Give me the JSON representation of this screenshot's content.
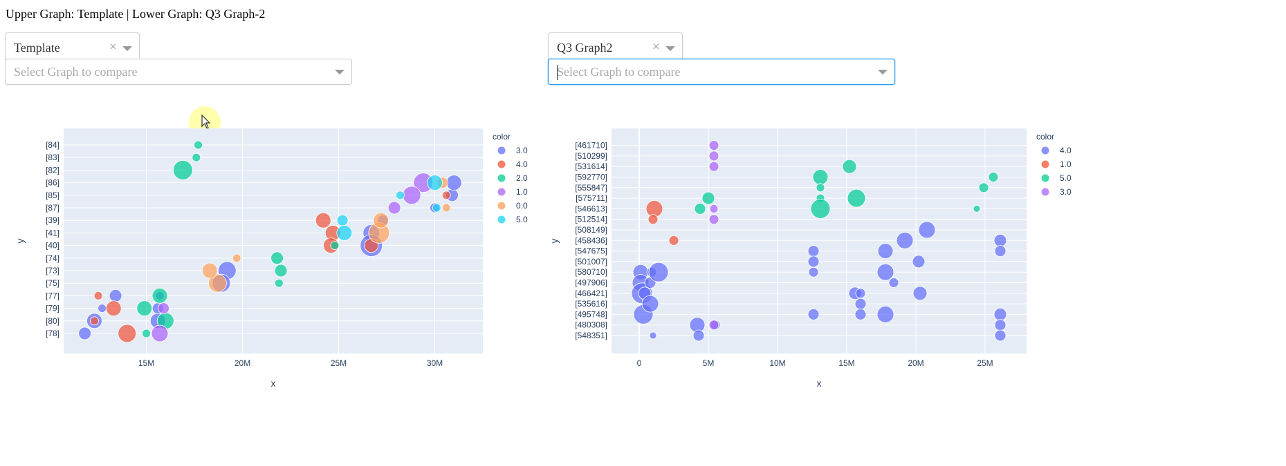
{
  "header": {
    "title": "Upper Graph: Template | Lower Graph: Q3 Graph-2"
  },
  "left": {
    "graph_select": {
      "value": "Template",
      "clear": "×"
    },
    "compare_select": {
      "placeholder": "Select Graph to compare"
    }
  },
  "right": {
    "graph_select": {
      "value": "Q3 Graph2",
      "clear": "×"
    },
    "compare_select": {
      "placeholder": "Select Graph to compare"
    }
  },
  "colors": {
    "plot_bg": "#e5ecf6",
    "palette": [
      "#636efa",
      "#ef553b",
      "#00cc96",
      "#ab63fa",
      "#ffa15a",
      "#19d3f3"
    ]
  },
  "chart_data": [
    {
      "type": "scatter",
      "xlabel": "x",
      "ylabel": "y",
      "legend_title": "color",
      "legend_position": "right",
      "grid": true,
      "xlim": [
        10700000,
        32500000
      ],
      "xticks": [
        {
          "value": 15000000,
          "label": "15M"
        },
        {
          "value": 20000000,
          "label": "20M"
        },
        {
          "value": 25000000,
          "label": "25M"
        },
        {
          "value": 30000000,
          "label": "30M"
        }
      ],
      "categories": [
        "[84]",
        "[83]",
        "[82]",
        "[86]",
        "[85]",
        "[87]",
        "[39]",
        "[41]",
        "[40]",
        "[74]",
        "[73]",
        "[75]",
        "[77]",
        "[79]",
        "[80]",
        "[78]"
      ],
      "series": [
        {
          "name": "3.0",
          "color": "#636efa",
          "points": [
            [
              11800000,
              "[78]",
              9
            ],
            [
              12300000,
              "[80]",
              11
            ],
            [
              12700000,
              "[79]",
              6
            ],
            [
              13400000,
              "[77]",
              9
            ],
            [
              15600000,
              "[80]",
              11
            ],
            [
              15600000,
              "[79]",
              8
            ],
            [
              15700000,
              "[77]",
              6
            ],
            [
              19200000,
              "[73]",
              13
            ],
            [
              18900000,
              "[75]",
              13
            ],
            [
              26700000,
              "[41]",
              12
            ],
            [
              26700000,
              "[40]",
              16
            ],
            [
              27300000,
              "[39]",
              8
            ],
            [
              30900000,
              "[85]",
              9
            ],
            [
              31000000,
              "[86]",
              11
            ],
            [
              30000000,
              "[87]",
              7
            ]
          ]
        },
        {
          "name": "4.0",
          "color": "#ef553b",
          "points": [
            [
              12300000,
              "[80]",
              6
            ],
            [
              12500000,
              "[77]",
              6
            ],
            [
              13300000,
              "[79]",
              11
            ],
            [
              14000000,
              "[78]",
              13
            ],
            [
              24200000,
              "[39]",
              11
            ],
            [
              24700000,
              "[41]",
              11
            ],
            [
              24600000,
              "[40]",
              11
            ],
            [
              26700000,
              "[40]",
              10
            ],
            [
              30600000,
              "[85]",
              6
            ]
          ]
        },
        {
          "name": "2.0",
          "color": "#00cc96",
          "points": [
            [
              17700000,
              "[84]",
              6
            ],
            [
              17600000,
              "[83]",
              6
            ],
            [
              16900000,
              "[82]",
              14
            ],
            [
              14900000,
              "[79]",
              11
            ],
            [
              15000000,
              "[78]",
              6
            ],
            [
              15700000,
              "[77]",
              11
            ],
            [
              16000000,
              "[80]",
              12
            ],
            [
              21800000,
              "[74]",
              9
            ],
            [
              22000000,
              "[73]",
              9
            ],
            [
              21900000,
              "[75]",
              6
            ],
            [
              24800000,
              "[40]",
              6
            ]
          ]
        },
        {
          "name": "1.0",
          "color": "#ab63fa",
          "points": [
            [
              15700000,
              "[78]",
              12
            ],
            [
              15900000,
              "[79]",
              8
            ],
            [
              29400000,
              "[86]",
              14
            ],
            [
              28800000,
              "[85]",
              13
            ],
            [
              27900000,
              "[87]",
              9
            ]
          ]
        },
        {
          "name": "0.0",
          "color": "#ffa15a",
          "points": [
            [
              19700000,
              "[74]",
              6
            ],
            [
              18700000,
              "[75]",
              13
            ],
            [
              18300000,
              "[73]",
              11
            ],
            [
              27100000,
              "[41]",
              15
            ],
            [
              27200000,
              "[39]",
              11
            ],
            [
              30600000,
              "[87]",
              6
            ],
            [
              30400000,
              "[86]",
              8
            ]
          ]
        },
        {
          "name": "5.0",
          "color": "#19d3f3",
          "points": [
            [
              25200000,
              "[39]",
              8
            ],
            [
              25300000,
              "[41]",
              11
            ],
            [
              28200000,
              "[85]",
              6
            ],
            [
              30000000,
              "[86]",
              11
            ],
            [
              30100000,
              "[87]",
              6
            ]
          ]
        }
      ]
    },
    {
      "type": "scatter",
      "xlabel": "x",
      "ylabel": "y",
      "legend_title": "color",
      "legend_position": "right",
      "grid": true,
      "xlim": [
        -2000000,
        28000000
      ],
      "xticks": [
        {
          "value": 0,
          "label": "0"
        },
        {
          "value": 5000000,
          "label": "5M"
        },
        {
          "value": 10000000,
          "label": "10M"
        },
        {
          "value": 15000000,
          "label": "15M"
        },
        {
          "value": 20000000,
          "label": "20M"
        },
        {
          "value": 25000000,
          "label": "25M"
        }
      ],
      "categories": [
        "[461710]",
        "[510299]",
        "[531614]",
        "[592770]",
        "[555847]",
        "[575711]",
        "[546613]",
        "[512514]",
        "[508149]",
        "[458436]",
        "[547675]",
        "[501007]",
        "[580710]",
        "[497906]",
        "[466421]",
        "[535616]",
        "[495748]",
        "[480308]",
        "[548351]"
      ],
      "series": [
        {
          "name": "4.0",
          "color": "#636efa",
          "points": [
            [
              100000,
              "[580710]",
              11
            ],
            [
              100000,
              "[497906]",
              12
            ],
            [
              200000,
              "[466421]",
              15
            ],
            [
              300000,
              "[495748]",
              14
            ],
            [
              400000,
              "[466421]",
              9
            ],
            [
              900000,
              "[580710]",
              7
            ],
            [
              800000,
              "[497906]",
              8
            ],
            [
              1400000,
              "[580710]",
              14
            ],
            [
              800000,
              "[535616]",
              12
            ],
            [
              1000000,
              "[548351]",
              5
            ],
            [
              4200000,
              "[480308]",
              11
            ],
            [
              4300000,
              "[548351]",
              8
            ],
            [
              5500000,
              "[480308]",
              7
            ],
            [
              12600000,
              "[547675]",
              8
            ],
            [
              12600000,
              "[501007]",
              8
            ],
            [
              12600000,
              "[580710]",
              7
            ],
            [
              12600000,
              "[495748]",
              8
            ],
            [
              15600000,
              "[466421]",
              9
            ],
            [
              16000000,
              "[535616]",
              8
            ],
            [
              16000000,
              "[466421]",
              7
            ],
            [
              16000000,
              "[495748]",
              8
            ],
            [
              17800000,
              "[547675]",
              11
            ],
            [
              17800000,
              "[580710]",
              12
            ],
            [
              17800000,
              "[495748]",
              12
            ],
            [
              18400000,
              "[497906]",
              7
            ],
            [
              19200000,
              "[458436]",
              12
            ],
            [
              20200000,
              "[501007]",
              9
            ],
            [
              20300000,
              "[466421]",
              10
            ],
            [
              20800000,
              "[508149]",
              12
            ],
            [
              26100000,
              "[458436]",
              9
            ],
            [
              26100000,
              "[547675]",
              8
            ],
            [
              26100000,
              "[495748]",
              9
            ],
            [
              26100000,
              "[480308]",
              8
            ],
            [
              26100000,
              "[548351]",
              8
            ]
          ]
        },
        {
          "name": "1.0",
          "color": "#ef553b",
          "points": [
            [
              1100000,
              "[546613]",
              12
            ],
            [
              1000000,
              "[512514]",
              7
            ],
            [
              2500000,
              "[458436]",
              7
            ]
          ]
        },
        {
          "name": "5.0",
          "color": "#00cc96",
          "points": [
            [
              4400000,
              "[546613]",
              8
            ],
            [
              5000000,
              "[575711]",
              9
            ],
            [
              13100000,
              "[592770]",
              11
            ],
            [
              13100000,
              "[555847]",
              6
            ],
            [
              13100000,
              "[575711]",
              6
            ],
            [
              13100000,
              "[546613]",
              14
            ],
            [
              15200000,
              "[531614]",
              10
            ],
            [
              15700000,
              "[575711]",
              13
            ],
            [
              24400000,
              "[546613]",
              5
            ],
            [
              24900000,
              "[555847]",
              7
            ],
            [
              25600000,
              "[592770]",
              7
            ]
          ]
        },
        {
          "name": "3.0",
          "color": "#ab63fa",
          "points": [
            [
              5400000,
              "[461710]",
              7
            ],
            [
              5400000,
              "[510299]",
              7
            ],
            [
              5400000,
              "[531614]",
              7
            ],
            [
              5400000,
              "[546613]",
              6
            ],
            [
              5400000,
              "[512514]",
              7
            ],
            [
              5400000,
              "[480308]",
              7
            ]
          ]
        }
      ]
    }
  ]
}
